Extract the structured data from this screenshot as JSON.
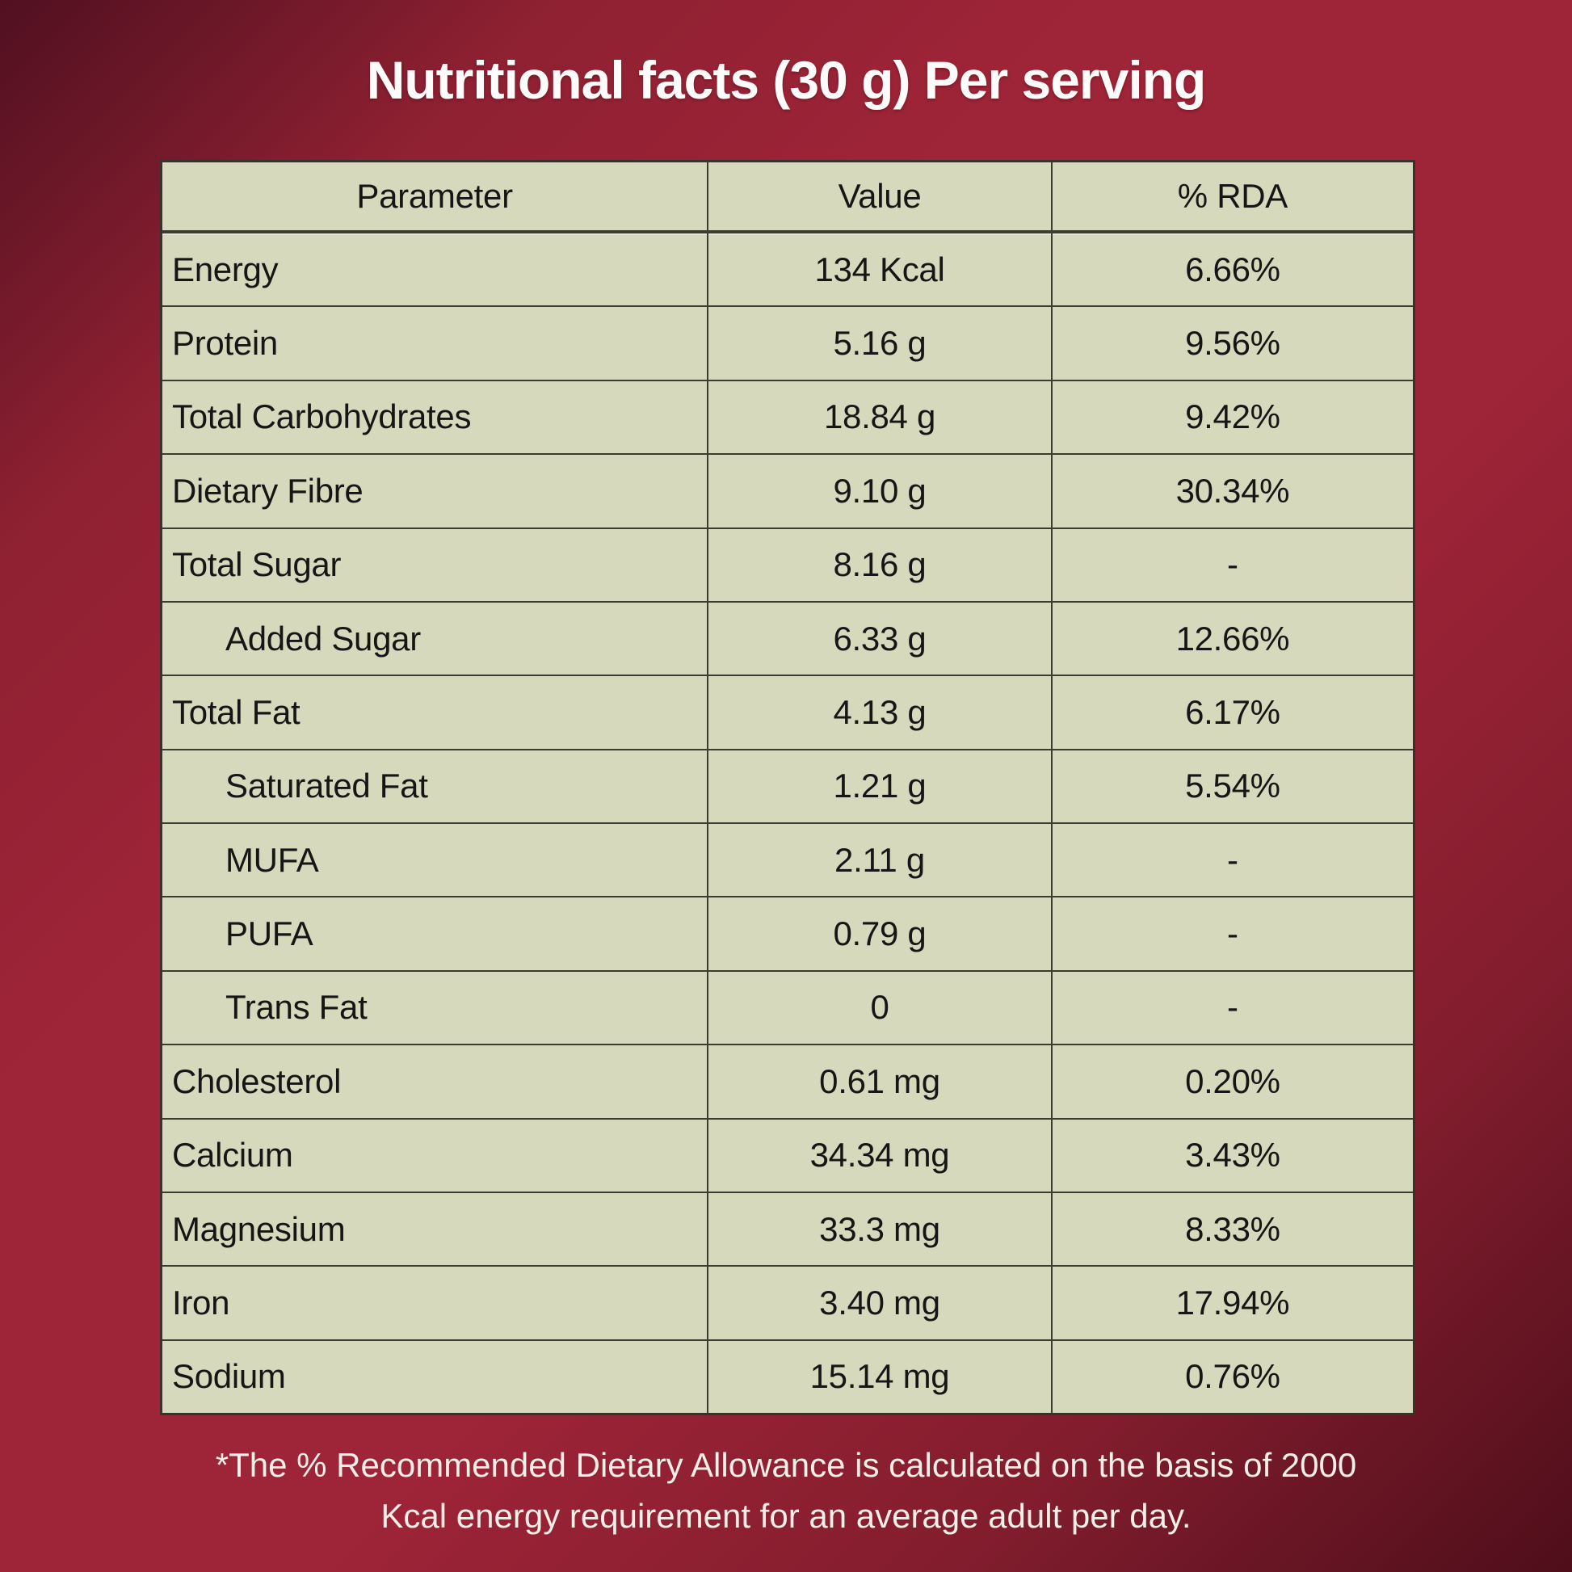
{
  "title": "Nutritional facts (30 g) Per serving",
  "table": {
    "headers": [
      "Parameter",
      "Value",
      "% RDA"
    ],
    "rows": [
      {
        "parameter": "Energy",
        "value": "134 Kcal",
        "rda": "6.66%",
        "indent": false
      },
      {
        "parameter": "Protein",
        "value": "5.16 g",
        "rda": "9.56%",
        "indent": false
      },
      {
        "parameter": "Total Carbohydrates",
        "value": "18.84 g",
        "rda": "9.42%",
        "indent": false
      },
      {
        "parameter": "Dietary Fibre",
        "value": "9.10 g",
        "rda": "30.34%",
        "indent": false
      },
      {
        "parameter": "Total Sugar",
        "value": "8.16 g",
        "rda": "-",
        "indent": false
      },
      {
        "parameter": "Added Sugar",
        "value": "6.33 g",
        "rda": "12.66%",
        "indent": true
      },
      {
        "parameter": "Total Fat",
        "value": "4.13 g",
        "rda": "6.17%",
        "indent": false
      },
      {
        "parameter": "Saturated Fat",
        "value": "1.21 g",
        "rda": "5.54%",
        "indent": true
      },
      {
        "parameter": "MUFA",
        "value": "2.11 g",
        "rda": "-",
        "indent": true
      },
      {
        "parameter": "PUFA",
        "value": "0.79 g",
        "rda": "-",
        "indent": true
      },
      {
        "parameter": "Trans Fat",
        "value": "0",
        "rda": "-",
        "indent": true
      },
      {
        "parameter": "Cholesterol",
        "value": "0.61 mg",
        "rda": "0.20%",
        "indent": false
      },
      {
        "parameter": "Calcium",
        "value": "34.34 mg",
        "rda": "3.43%",
        "indent": false
      },
      {
        "parameter": "Magnesium",
        "value": "33.3 mg",
        "rda": "8.33%",
        "indent": false
      },
      {
        "parameter": "Iron",
        "value": "3.40 mg",
        "rda": "17.94%",
        "indent": false
      },
      {
        "parameter": "Sodium",
        "value": "15.14 mg",
        "rda": "0.76%",
        "indent": false
      }
    ]
  },
  "footnote": {
    "line1": "*The % Recommended Dietary Allowance is calculated on the basis of 2000",
    "line2": "Kcal energy requirement for an average adult per day."
  },
  "colors": {
    "background_center": "#9e2437",
    "background_edge": "#4f0e1a",
    "table_background": "#d6d9bc",
    "table_border": "#3c3c30",
    "table_text": "#161616",
    "title_text": "#fdfcfa",
    "footnote_text": "#f3efe8"
  }
}
